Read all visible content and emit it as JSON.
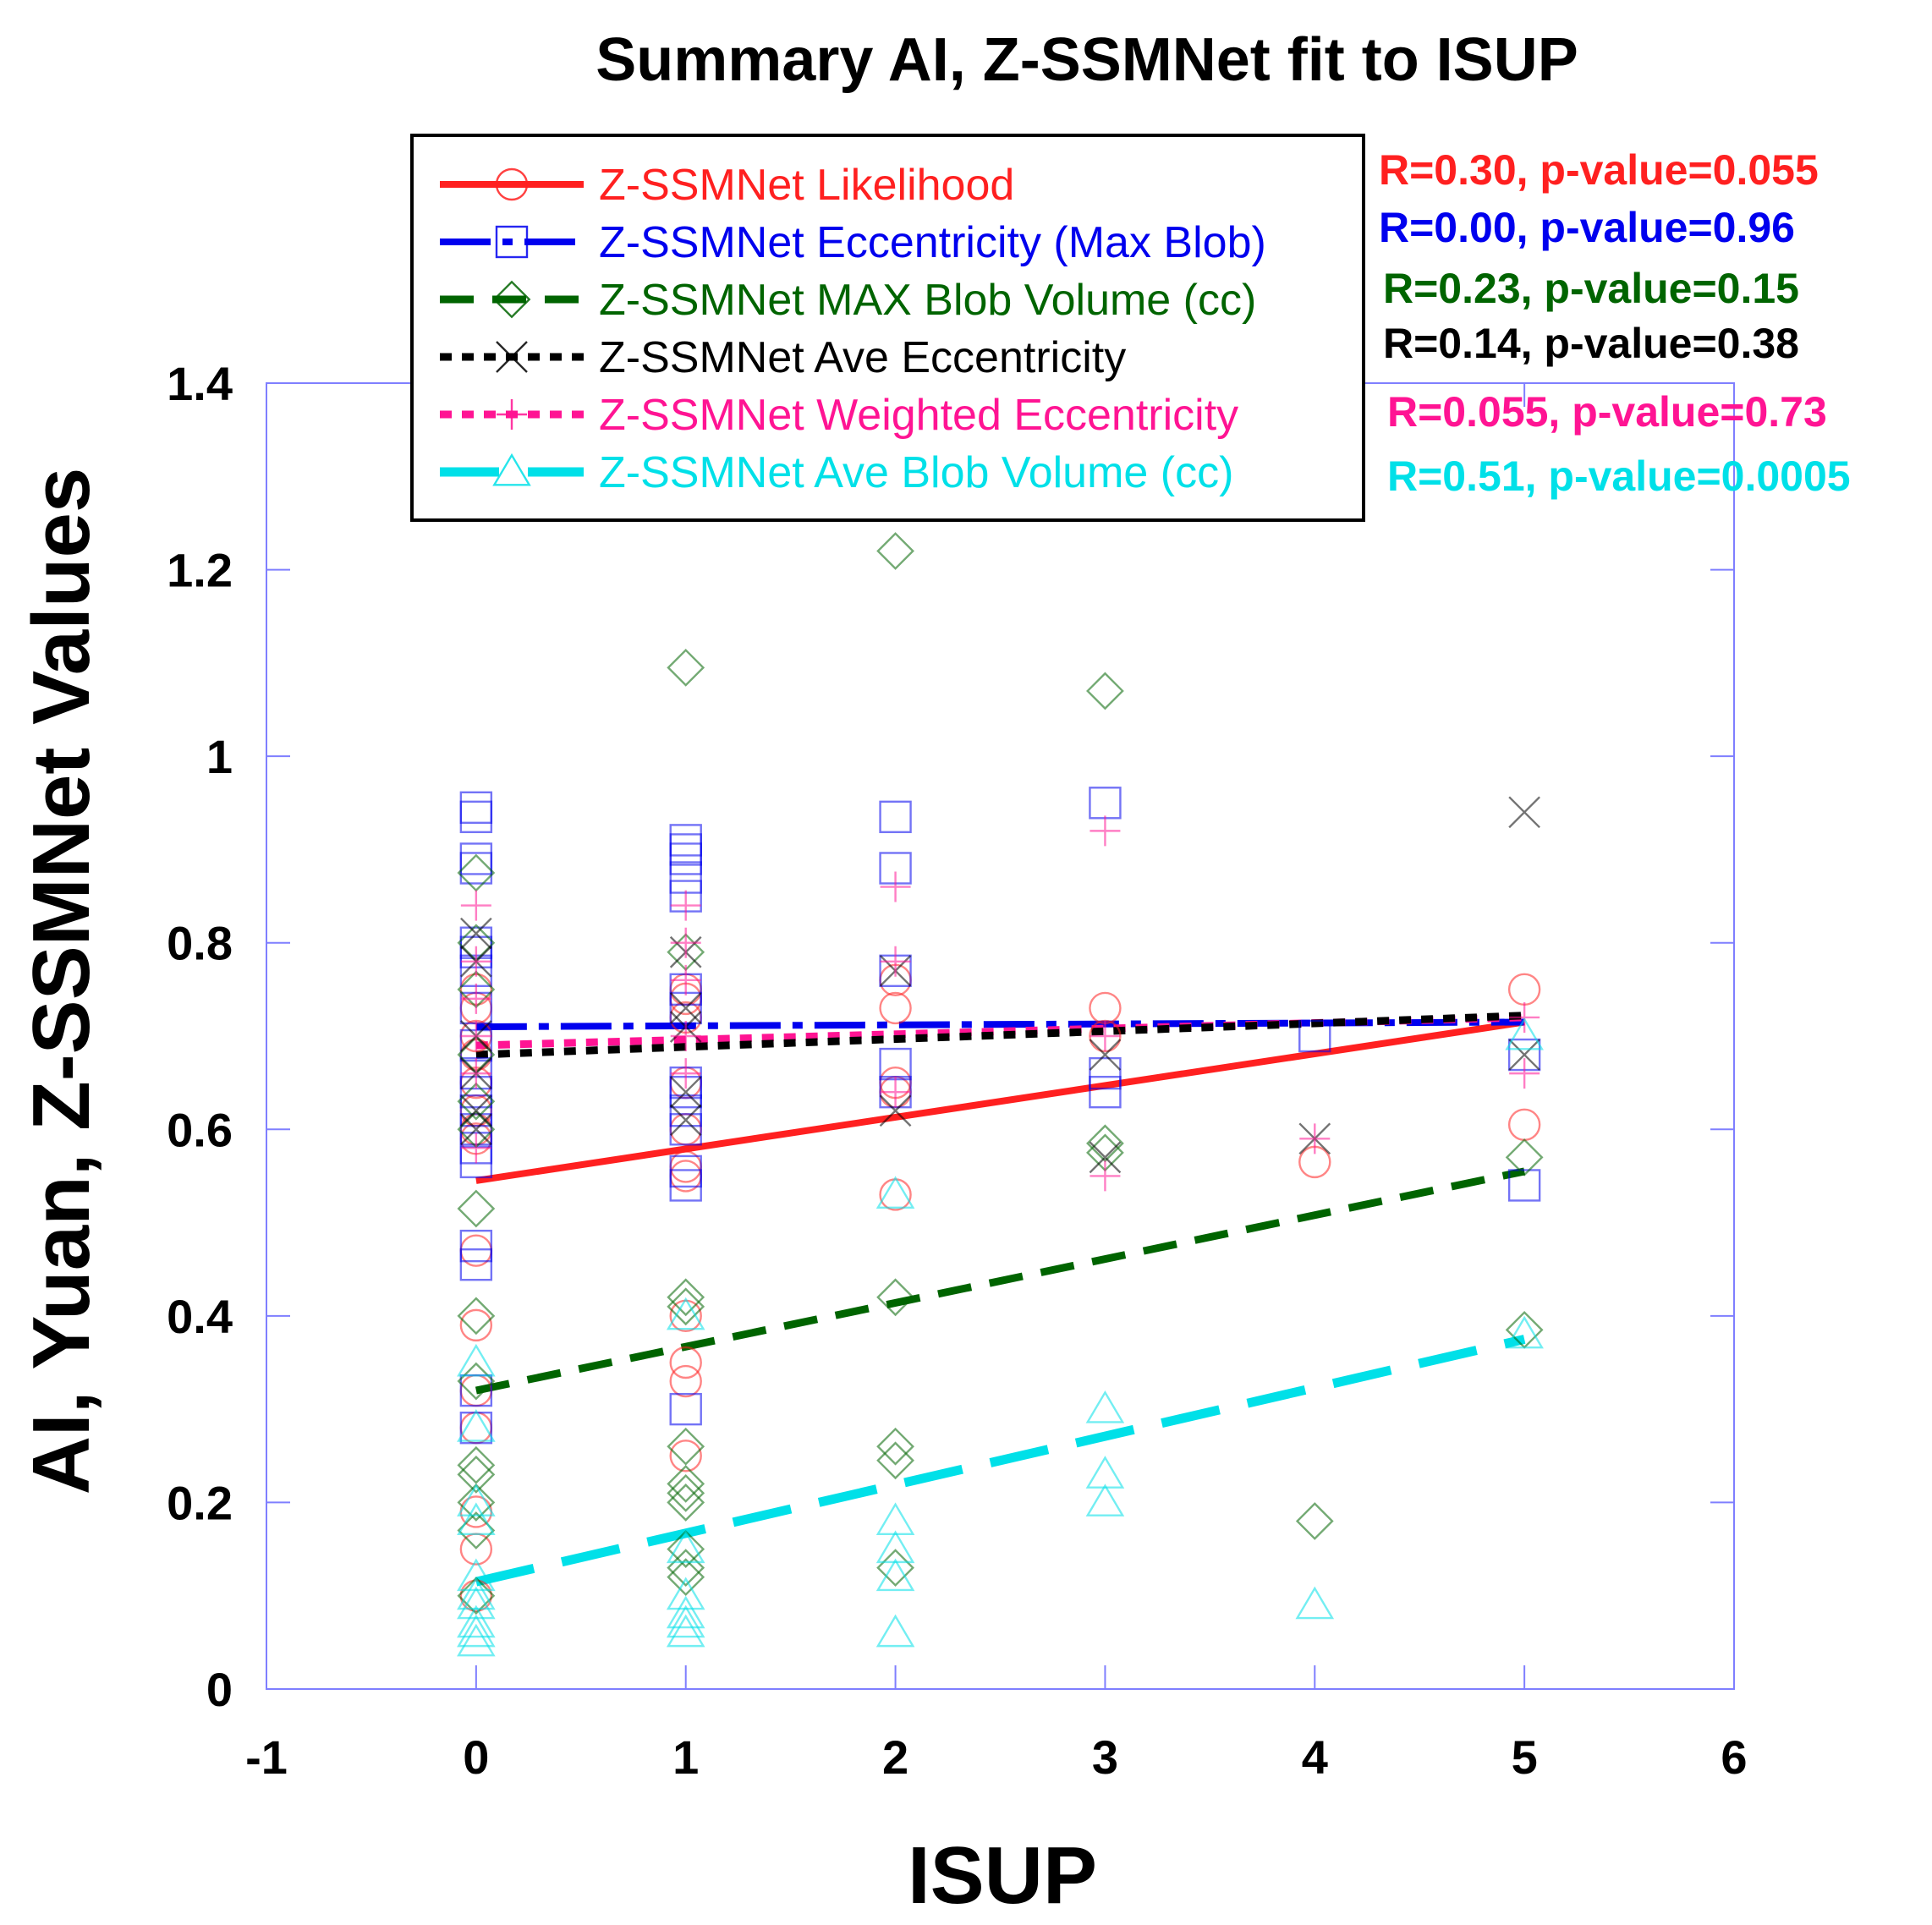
{
  "chart_data": {
    "type": "scatter",
    "title": "Summary AI, Z-SSMNet fit to ISUP",
    "xlabel": "ISUP",
    "ylabel": "AI, Yuan, Z-SSMNet Values",
    "xlim": [
      -1,
      6
    ],
    "ylim": [
      0,
      1.4
    ],
    "xticks": [
      "-1",
      "0",
      "1",
      "2",
      "3",
      "4",
      "5",
      "6"
    ],
    "yticks": [
      "0",
      "0.2",
      "0.4",
      "0.6",
      "0.8",
      "1",
      "1.2",
      "1.4"
    ],
    "series": [
      {
        "name": "Z-SSMNet Likelihood",
        "color": "#ff2020",
        "marker": "circle",
        "line_style": "solid",
        "fit": [
          [
            0,
            0.545
          ],
          [
            5,
            0.715
          ]
        ],
        "stat": "R=0.30, p-value=0.055",
        "points": [
          [
            0,
            0.75
          ],
          [
            0,
            0.73
          ],
          [
            0,
            0.7
          ],
          [
            0,
            0.68
          ],
          [
            0,
            0.65
          ],
          [
            0,
            0.62
          ],
          [
            0,
            0.6
          ],
          [
            0,
            0.59
          ],
          [
            0,
            0.47
          ],
          [
            0,
            0.39
          ],
          [
            0,
            0.32
          ],
          [
            0,
            0.28
          ],
          [
            0,
            0.19
          ],
          [
            0,
            0.15
          ],
          [
            0,
            0.1
          ],
          [
            1,
            0.75
          ],
          [
            1,
            0.74
          ],
          [
            1,
            0.72
          ],
          [
            1,
            0.65
          ],
          [
            1,
            0.6
          ],
          [
            1,
            0.56
          ],
          [
            1,
            0.55
          ],
          [
            1,
            0.4
          ],
          [
            1,
            0.35
          ],
          [
            1,
            0.33
          ],
          [
            1,
            0.25
          ],
          [
            2,
            0.76
          ],
          [
            2,
            0.73
          ],
          [
            2,
            0.65
          ],
          [
            2,
            0.64
          ],
          [
            2,
            0.53
          ],
          [
            3,
            0.73
          ],
          [
            3,
            0.7
          ],
          [
            4,
            0.565
          ],
          [
            5,
            0.75
          ],
          [
            5,
            0.605
          ]
        ]
      },
      {
        "name": "Z-SSMNet Eccentricity (Max Blob)",
        "color": "#0000ee",
        "marker": "square",
        "line_style": "dashdot",
        "fit": [
          [
            0,
            0.71
          ],
          [
            5,
            0.715
          ]
        ],
        "stat": "R=0.00, p-value=0.96",
        "points": [
          [
            0,
            0.945
          ],
          [
            0,
            0.935
          ],
          [
            0,
            0.89
          ],
          [
            0,
            0.88
          ],
          [
            0,
            0.8
          ],
          [
            0,
            0.79
          ],
          [
            0,
            0.77
          ],
          [
            0,
            0.73
          ],
          [
            0,
            0.69
          ],
          [
            0,
            0.66
          ],
          [
            0,
            0.64
          ],
          [
            0,
            0.62
          ],
          [
            0,
            0.6
          ],
          [
            0,
            0.58
          ],
          [
            0,
            0.565
          ],
          [
            0,
            0.475
          ],
          [
            0,
            0.455
          ],
          [
            0,
            0.32
          ],
          [
            0,
            0.28
          ],
          [
            1,
            0.91
          ],
          [
            1,
            0.9
          ],
          [
            1,
            0.89
          ],
          [
            1,
            0.87
          ],
          [
            1,
            0.85
          ],
          [
            1,
            0.75
          ],
          [
            1,
            0.73
          ],
          [
            1,
            0.65
          ],
          [
            1,
            0.64
          ],
          [
            1,
            0.62
          ],
          [
            1,
            0.6
          ],
          [
            1,
            0.555
          ],
          [
            1,
            0.54
          ],
          [
            1,
            0.3
          ],
          [
            2,
            0.935
          ],
          [
            2,
            0.88
          ],
          [
            2,
            0.77
          ],
          [
            2,
            0.67
          ],
          [
            2,
            0.64
          ],
          [
            3,
            0.95
          ],
          [
            3,
            0.66
          ],
          [
            3,
            0.64
          ],
          [
            4,
            0.7
          ],
          [
            5,
            0.68
          ],
          [
            5,
            0.54
          ]
        ]
      },
      {
        "name": "Z-SSMNet MAX Blob Volume (cc)",
        "color": "#006400",
        "marker": "diamond",
        "line_style": "dashed",
        "fit": [
          [
            0,
            0.32
          ],
          [
            5,
            0.555
          ]
        ],
        "stat": "R=0.23, p-value=0.15",
        "points": [
          [
            0,
            0.875
          ],
          [
            0,
            0.8
          ],
          [
            0,
            0.75
          ],
          [
            0,
            0.68
          ],
          [
            0,
            0.63
          ],
          [
            0,
            0.6
          ],
          [
            0,
            0.515
          ],
          [
            0,
            0.4
          ],
          [
            0,
            0.33
          ],
          [
            0,
            0.24
          ],
          [
            0,
            0.23
          ],
          [
            0,
            0.2
          ],
          [
            0,
            0.17
          ],
          [
            0,
            0.1
          ],
          [
            1,
            1.095
          ],
          [
            1,
            0.79
          ],
          [
            1,
            0.42
          ],
          [
            1,
            0.41
          ],
          [
            1,
            0.26
          ],
          [
            1,
            0.22
          ],
          [
            1,
            0.21
          ],
          [
            1,
            0.2
          ],
          [
            1,
            0.15
          ],
          [
            1,
            0.13
          ],
          [
            1,
            0.12
          ],
          [
            2,
            1.22
          ],
          [
            2,
            0.42
          ],
          [
            2,
            0.26
          ],
          [
            2,
            0.245
          ],
          [
            2,
            0.13
          ],
          [
            3,
            1.07
          ],
          [
            3,
            0.585
          ],
          [
            3,
            0.575
          ],
          [
            4,
            0.18
          ],
          [
            5,
            0.57
          ],
          [
            5,
            0.385
          ]
        ]
      },
      {
        "name": "Z-SSMNet Ave Eccentricity",
        "color": "#000000",
        "marker": "x",
        "line_style": "dotted",
        "fit": [
          [
            0,
            0.68
          ],
          [
            5,
            0.722
          ]
        ],
        "stat": "R=0.14, p-value=0.38",
        "points": [
          [
            0,
            0.81
          ],
          [
            0,
            0.78
          ],
          [
            0,
            0.7
          ],
          [
            0,
            0.66
          ],
          [
            0,
            0.62
          ],
          [
            0,
            0.6
          ],
          [
            1,
            0.79
          ],
          [
            1,
            0.73
          ],
          [
            1,
            0.71
          ],
          [
            1,
            0.64
          ],
          [
            1,
            0.61
          ],
          [
            2,
            0.77
          ],
          [
            2,
            0.62
          ],
          [
            3,
            0.68
          ],
          [
            3,
            0.57
          ],
          [
            4,
            0.59
          ],
          [
            5,
            0.94
          ],
          [
            5,
            0.68
          ]
        ]
      },
      {
        "name": "Z-SSMNet Weighted Eccentricity",
        "color": "#ff1493",
        "marker": "plus",
        "line_style": "dotted",
        "fit": [
          [
            0,
            0.69
          ],
          [
            5,
            0.72
          ]
        ],
        "stat": "R=0.055, p-value=0.73",
        "points": [
          [
            0,
            0.84
          ],
          [
            0,
            0.78
          ],
          [
            0,
            0.74
          ],
          [
            0,
            0.7
          ],
          [
            0,
            0.66
          ],
          [
            0,
            0.58
          ],
          [
            1,
            0.84
          ],
          [
            1,
            0.8
          ],
          [
            1,
            0.76
          ],
          [
            1,
            0.7
          ],
          [
            1,
            0.66
          ],
          [
            2,
            0.86
          ],
          [
            2,
            0.78
          ],
          [
            2,
            0.64
          ],
          [
            3,
            0.92
          ],
          [
            3,
            0.7
          ],
          [
            3,
            0.55
          ],
          [
            4,
            0.59
          ],
          [
            5,
            0.72
          ],
          [
            5,
            0.66
          ]
        ]
      },
      {
        "name": "Z-SSMNet Ave Blob Volume (cc)",
        "color": "#00e0e8",
        "marker": "triangle",
        "line_style": "longdash",
        "fit": [
          [
            0,
            0.115
          ],
          [
            5,
            0.375
          ]
        ],
        "stat": "R=0.51, p-value=0.0005",
        "points": [
          [
            0,
            0.35
          ],
          [
            0,
            0.28
          ],
          [
            0,
            0.2
          ],
          [
            0,
            0.18
          ],
          [
            0,
            0.12
          ],
          [
            0,
            0.1
          ],
          [
            0,
            0.09
          ],
          [
            0,
            0.07
          ],
          [
            0,
            0.06
          ],
          [
            0,
            0.05
          ],
          [
            1,
            0.4
          ],
          [
            1,
            0.15
          ],
          [
            1,
            0.1
          ],
          [
            1,
            0.08
          ],
          [
            1,
            0.07
          ],
          [
            1,
            0.06
          ],
          [
            2,
            0.53
          ],
          [
            2,
            0.18
          ],
          [
            2,
            0.15
          ],
          [
            2,
            0.12
          ],
          [
            2,
            0.06
          ],
          [
            3,
            0.3
          ],
          [
            3,
            0.23
          ],
          [
            3,
            0.2
          ],
          [
            4,
            0.09
          ],
          [
            5,
            0.7
          ],
          [
            5,
            0.38
          ]
        ]
      }
    ]
  }
}
